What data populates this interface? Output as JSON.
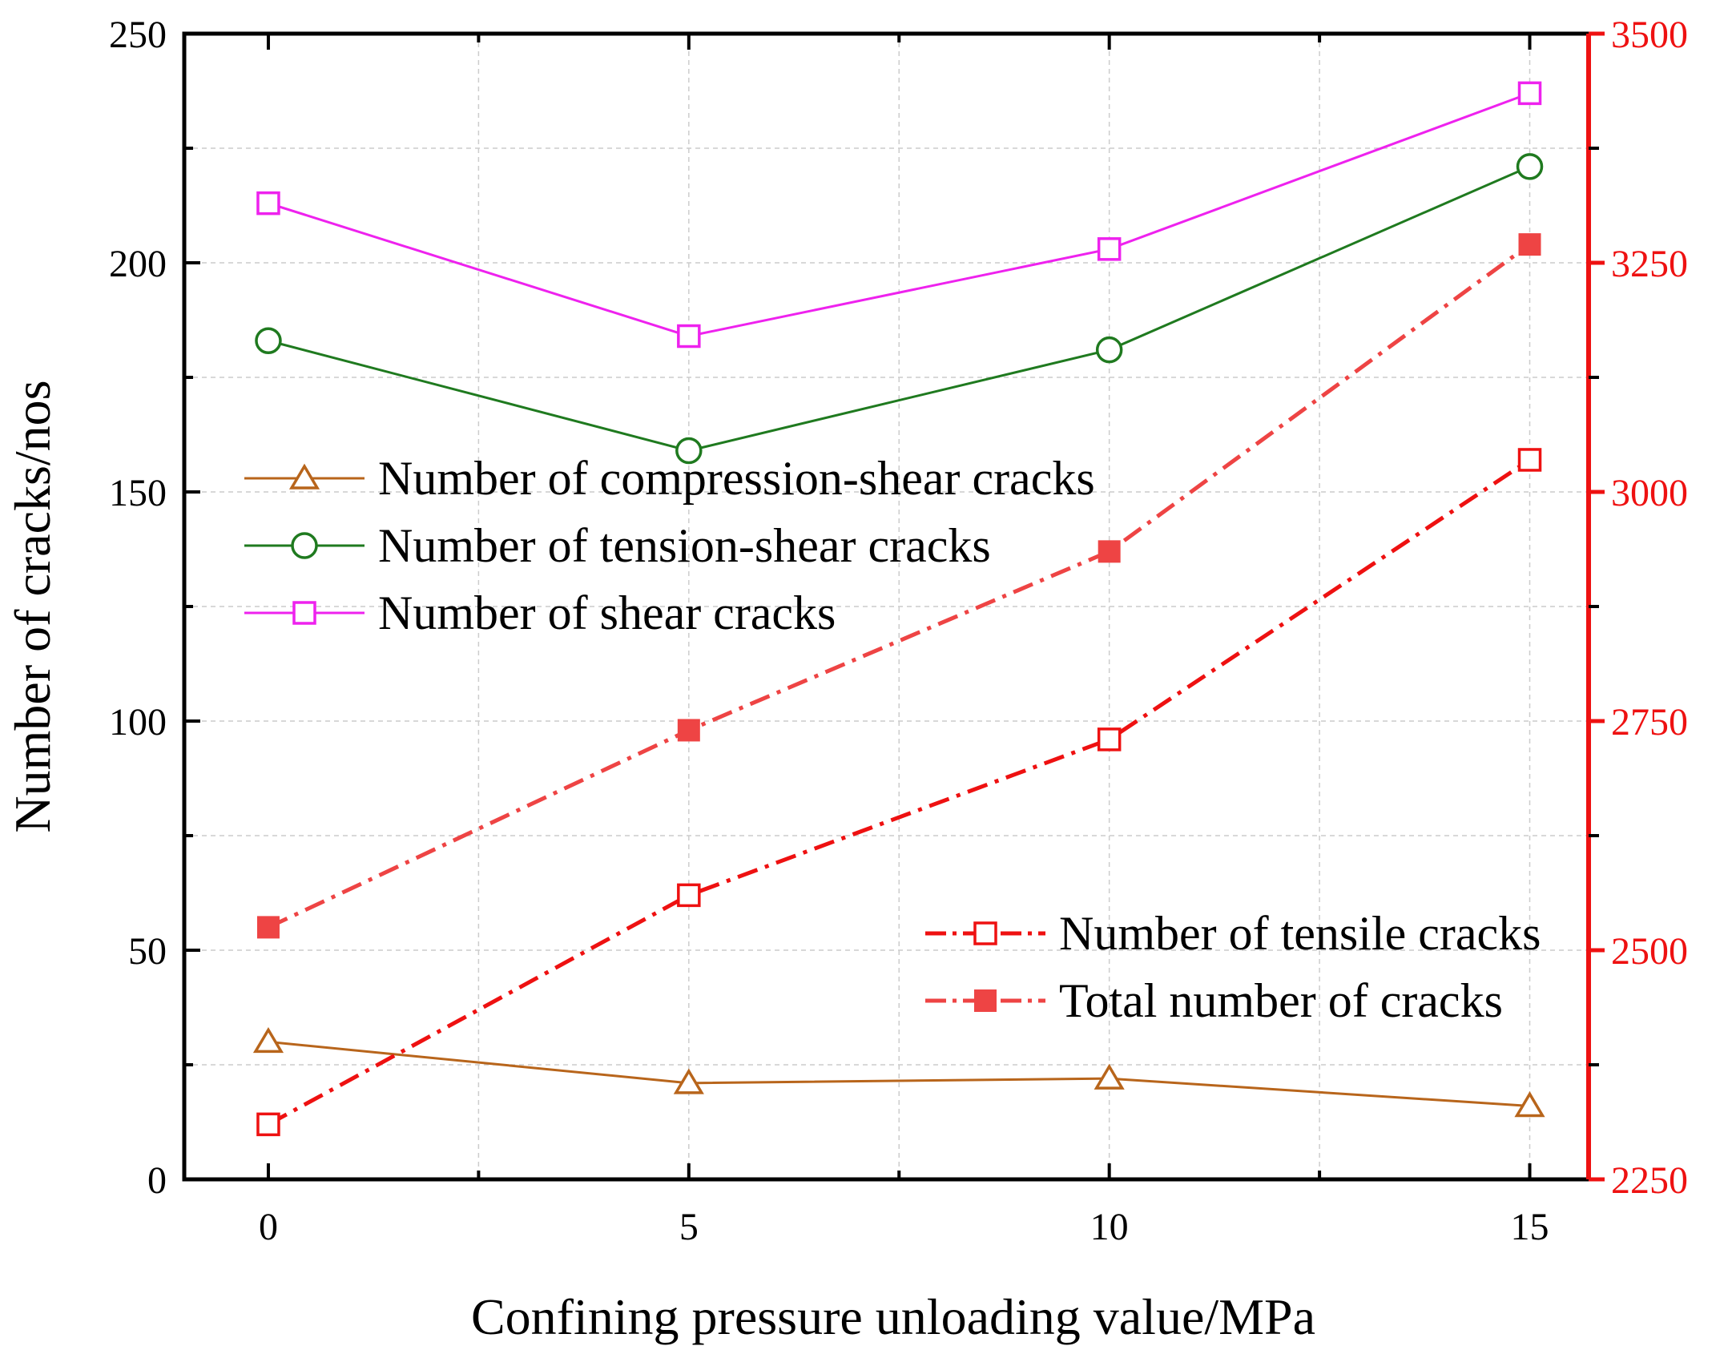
{
  "chart_data": {
    "type": "line",
    "title": "",
    "xlabel": "Confining pressure unloading value/MPa",
    "ylabel": "Number of cracks/nos",
    "x": [
      0,
      5,
      10,
      15
    ],
    "x_ticks": [
      0,
      5,
      10,
      15
    ],
    "xlim": [
      -1,
      15.7
    ],
    "ylim": [
      0,
      250
    ],
    "y_ticks": [
      0,
      50,
      100,
      150,
      200,
      250
    ],
    "y2lim": [
      2250,
      3500
    ],
    "y2_ticks": [
      2250,
      2500,
      2750,
      3000,
      3250,
      3500
    ],
    "grid": true,
    "series": [
      {
        "name": "Number of compression-shear cracks",
        "axis": "left",
        "values": [
          30,
          21,
          22,
          16
        ],
        "color": "#b8651b",
        "marker": "triangle-open",
        "line": "solid"
      },
      {
        "name": "Number of tension-shear cracks",
        "axis": "left",
        "values": [
          183,
          159,
          181,
          221
        ],
        "color": "#1f7a1f",
        "marker": "circle-open",
        "line": "solid"
      },
      {
        "name": "Number of shear cracks",
        "axis": "left",
        "values": [
          213,
          184,
          203,
          237
        ],
        "color": "#ee22ee",
        "marker": "square-open",
        "line": "solid"
      },
      {
        "name": "Number of tensile cracks",
        "axis": "left",
        "values": [
          12,
          62,
          96,
          157
        ],
        "color": "#ee1111",
        "marker": "square-open",
        "line": "dashdot"
      },
      {
        "name": "Total number of cracks",
        "axis": "right",
        "values": [
          2525,
          2740,
          2935,
          3270
        ],
        "color": "#ee4444",
        "marker": "square-filled",
        "line": "dashdot"
      }
    ],
    "legends": [
      {
        "placement": "upper-left",
        "entries": [
          "Number of compression-shear cracks",
          "Number of tension-shear cracks",
          "Number of shear cracks"
        ]
      },
      {
        "placement": "lower-right",
        "entries": [
          "Number of tensile cracks",
          "Total number of cracks"
        ]
      }
    ],
    "colors": {
      "axis": "#000000",
      "right_axis": "#ee1111",
      "grid": "#cccccc"
    }
  }
}
